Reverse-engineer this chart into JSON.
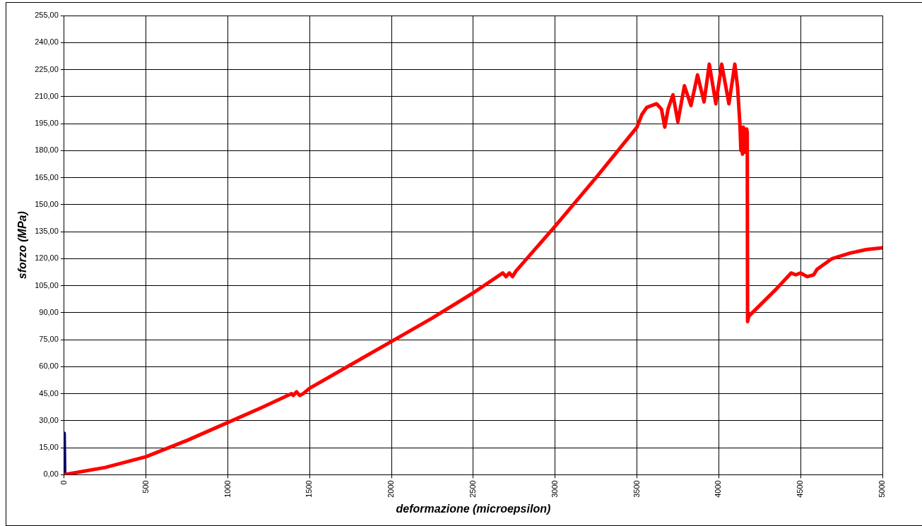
{
  "chart_data": {
    "type": "line",
    "xlabel": "deformazione (microepsilon)",
    "ylabel": "sforzo (MPa)",
    "xlim": [
      0,
      5000
    ],
    "xticks": [
      0,
      500,
      1000,
      1500,
      2000,
      2500,
      3000,
      3500,
      4000,
      4500,
      5000
    ],
    "ylim": [
      0,
      255
    ],
    "yticks": [
      {
        "value": 0,
        "label": "0,00"
      },
      {
        "value": 15,
        "label": "15,00"
      },
      {
        "value": 30,
        "label": "30,00"
      },
      {
        "value": 45,
        "label": "45,00"
      },
      {
        "value": 60,
        "label": "60,00"
      },
      {
        "value": 75,
        "label": "75,00"
      },
      {
        "value": 90,
        "label": "90,00"
      },
      {
        "value": 105,
        "label": "105,00"
      },
      {
        "value": 120,
        "label": "120,00"
      },
      {
        "value": 135,
        "label": "135,00"
      },
      {
        "value": 150,
        "label": "150,00"
      },
      {
        "value": 165,
        "label": "165,00"
      },
      {
        "value": 180,
        "label": "180,00"
      },
      {
        "value": 195,
        "label": "195,00"
      },
      {
        "value": 210,
        "label": "210,00"
      },
      {
        "value": 225,
        "label": "225,00"
      },
      {
        "value": 240,
        "label": "240,00"
      },
      {
        "value": 255,
        "label": "255,00"
      }
    ],
    "grid": true,
    "legend": false,
    "marker": "none",
    "line_style": "solid",
    "series": [
      {
        "color": "#ff0000",
        "x": [
          0,
          250,
          500,
          750,
          1000,
          1200,
          1390,
          1400,
          1420,
          1440,
          1460,
          1500,
          1750,
          2000,
          2250,
          2500,
          2680,
          2700,
          2720,
          2740,
          2760,
          3000,
          3250,
          3500,
          3530,
          3560,
          3620,
          3650,
          3670,
          3690,
          3720,
          3750,
          3790,
          3830,
          3870,
          3910,
          3942,
          3982,
          4018,
          4062,
          4098,
          4115,
          4129,
          4135,
          4140,
          4145,
          4150,
          4155,
          4160,
          4165,
          4170,
          4174,
          4176,
          4183,
          4250,
          4350,
          4442,
          4470,
          4500,
          4540,
          4580,
          4600,
          4692,
          4800,
          4900,
          5000
        ],
        "values": [
          0,
          4,
          10,
          19,
          29,
          37,
          45,
          44,
          46,
          44,
          45,
          48,
          61,
          74,
          87,
          101,
          112,
          110,
          112,
          110,
          113,
          138,
          165,
          193,
          200,
          204,
          206,
          203,
          193,
          203,
          211,
          196,
          216,
          205,
          222,
          207,
          228,
          206,
          228,
          206,
          228,
          215,
          195,
          180,
          192,
          178,
          193,
          179,
          192,
          180,
          192,
          190,
          85,
          88,
          94,
          103,
          112,
          111,
          112,
          110,
          111,
          114,
          120,
          123,
          125,
          126
        ]
      },
      {
        "color": "#000080",
        "x": [
          0,
          3
        ],
        "values": [
          23,
          0
        ]
      }
    ]
  }
}
